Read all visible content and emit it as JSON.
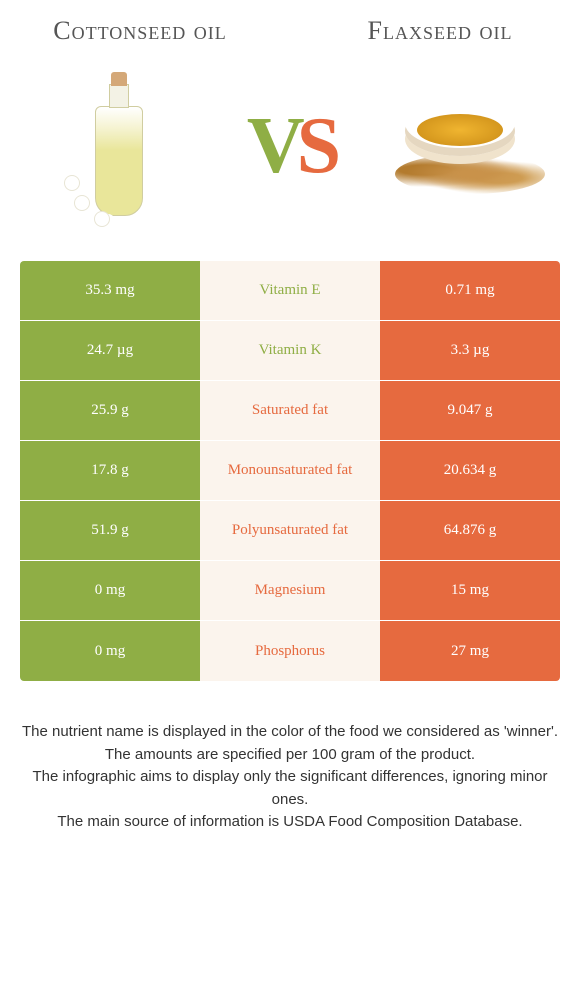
{
  "colors": {
    "left_bg": "#8fae45",
    "right_bg": "#e66a3f",
    "mid_bg": "#fbf4ed",
    "winner_left_text": "#8fae45",
    "winner_right_text": "#e66a3f"
  },
  "products": {
    "left": {
      "title": "Cottonseed oil"
    },
    "right": {
      "title": "Flaxseed oil"
    }
  },
  "vs": {
    "v": "V",
    "s": "S"
  },
  "rows": [
    {
      "left": "35.3 mg",
      "label": "Vitamin E",
      "right": "0.71 mg",
      "winner": "left"
    },
    {
      "left": "24.7 µg",
      "label": "Vitamin K",
      "right": "3.3 µg",
      "winner": "left"
    },
    {
      "left": "25.9 g",
      "label": "Saturated fat",
      "right": "9.047 g",
      "winner": "right"
    },
    {
      "left": "17.8 g",
      "label": "Monounsaturated fat",
      "right": "20.634 g",
      "winner": "right"
    },
    {
      "left": "51.9 g",
      "label": "Polyunsaturated fat",
      "right": "64.876 g",
      "winner": "right"
    },
    {
      "left": "0 mg",
      "label": "Magnesium",
      "right": "15 mg",
      "winner": "right"
    },
    {
      "left": "0 mg",
      "label": "Phosphorus",
      "right": "27 mg",
      "winner": "right"
    }
  ],
  "footer": {
    "line1": "The nutrient name is displayed in the color of the food we considered as 'winner'.",
    "line2": "The amounts are specified per 100 gram of the product.",
    "line3": "The infographic aims to display only the significant differences, ignoring minor ones.",
    "line4": "The main source of information is USDA Food Composition Database."
  }
}
